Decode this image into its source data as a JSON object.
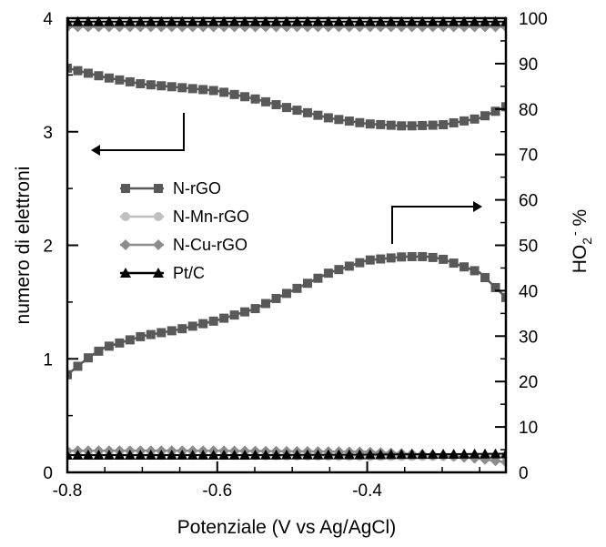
{
  "chart_data": {
    "type": "line",
    "title": "",
    "xlabel": "Potenziale (V vs Ag/AgCl)",
    "ylabel_left": "numero di elettroni",
    "ylabel_right_base": "HO",
    "ylabel_right_sub": "2",
    "ylabel_right_sup": "-",
    "ylabel_right_unit": " %",
    "xlim": [
      -0.8,
      -0.215
    ],
    "ylim_left": [
      0,
      4
    ],
    "ylim_right": [
      0,
      100
    ],
    "x_ticks": [
      -0.8,
      -0.6,
      -0.4
    ],
    "x_tick_labels": [
      "-0.8",
      "-0.6",
      "-0.4"
    ],
    "y_left_ticks": [
      0,
      1,
      2,
      3,
      4
    ],
    "y_left_tick_labels": [
      "0",
      "1",
      "2",
      "3",
      "4"
    ],
    "y_right_ticks": [
      0,
      10,
      20,
      30,
      40,
      50,
      60,
      70,
      80,
      90,
      100
    ],
    "y_right_tick_labels": [
      "0",
      "10",
      "20",
      "30",
      "40",
      "50",
      "60",
      "70",
      "80",
      "90",
      "100"
    ],
    "grid": false,
    "legend_position": "middle-left",
    "legend": [
      {
        "name": "N-rGO",
        "color": "#595959",
        "marker": "square"
      },
      {
        "name": "N-Mn-rGO",
        "color": "#c0c0c0",
        "marker": "circle"
      },
      {
        "name": "N-Cu-rGO",
        "color": "#8c8c8c",
        "marker": "diamond"
      },
      {
        "name": "Pt/C",
        "color": "#000000",
        "marker": "triangle"
      }
    ],
    "series": [
      {
        "legend": "N-rGO",
        "axis": "left",
        "x": [
          -0.8,
          -0.75,
          -0.7,
          -0.65,
          -0.6,
          -0.55,
          -0.5,
          -0.45,
          -0.4,
          -0.35,
          -0.3,
          -0.25,
          -0.215
        ],
        "y": [
          3.56,
          3.48,
          3.42,
          3.39,
          3.36,
          3.29,
          3.2,
          3.12,
          3.07,
          3.05,
          3.06,
          3.12,
          3.22
        ]
      },
      {
        "legend": "N-rGO",
        "axis": "right",
        "x": [
          -0.8,
          -0.77,
          -0.75,
          -0.7,
          -0.65,
          -0.6,
          -0.55,
          -0.5,
          -0.45,
          -0.4,
          -0.35,
          -0.32,
          -0.3,
          -0.25,
          -0.215
        ],
        "y": [
          21.5,
          25.5,
          27.5,
          30,
          31.5,
          33.5,
          36,
          40,
          44,
          46.7,
          47.5,
          47.5,
          47,
          44,
          38.5
        ]
      },
      {
        "legend": "N-Mn-rGO",
        "axis": "left",
        "x": [
          -0.8,
          -0.6,
          -0.4,
          -0.3,
          -0.215
        ],
        "y": [
          0.15,
          0.15,
          0.14,
          0.14,
          0.14
        ]
      },
      {
        "legend": "N-Cu-rGO",
        "axis": "left",
        "x": [
          -0.8,
          -0.6,
          -0.4,
          -0.3,
          -0.25,
          -0.215
        ],
        "y": [
          0.19,
          0.19,
          0.18,
          0.15,
          0.12,
          0.09
        ]
      },
      {
        "legend": "N-Mn-rGO",
        "axis": "right",
        "x": [
          -0.8,
          -0.215
        ],
        "y": [
          98.6,
          98.6
        ]
      },
      {
        "legend": "N-Cu-rGO",
        "axis": "right",
        "x": [
          -0.8,
          -0.215
        ],
        "y": [
          98.1,
          98.1
        ]
      },
      {
        "legend": "Pt/C",
        "axis": "left",
        "x": [
          -0.8,
          -0.6,
          -0.4,
          -0.3,
          -0.215
        ],
        "y": [
          3.97,
          3.97,
          3.97,
          3.97,
          3.97
        ]
      },
      {
        "legend": "Pt/C",
        "axis": "right",
        "x": [
          -0.8,
          -0.6,
          -0.4,
          -0.3,
          -0.215
        ],
        "y": [
          3.8,
          3.8,
          3.9,
          4.0,
          4.1
        ]
      }
    ]
  }
}
